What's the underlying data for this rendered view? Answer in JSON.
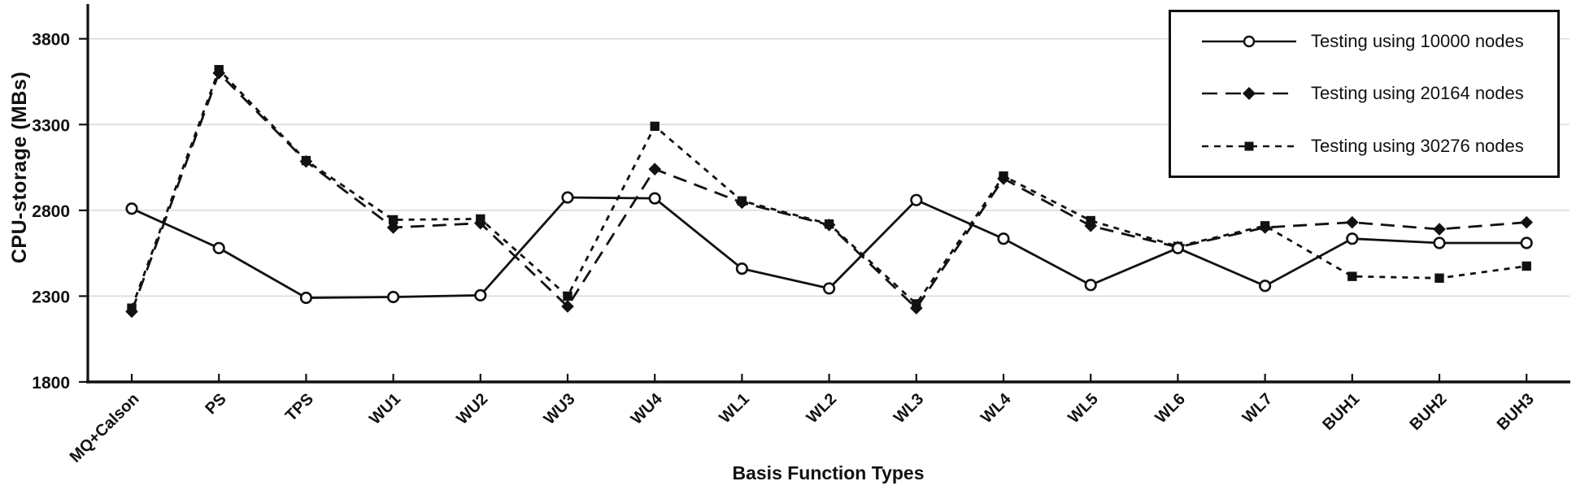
{
  "chart_data": {
    "type": "line",
    "title": "",
    "xlabel": "Basis Function Types",
    "ylabel": "CPU-storage (MBs)",
    "ylim": [
      1800,
      3800
    ],
    "yticks": [
      1800,
      2300,
      2800,
      3300,
      3800
    ],
    "grid": "horizontal",
    "legend_position": "top-right",
    "categories": [
      "MQ+Calson",
      "PS",
      "TPS",
      "WU1",
      "WU2",
      "WU3",
      "WU4",
      "WL1",
      "WL2",
      "WL3",
      "WL4",
      "WL5",
      "WL6",
      "WL7",
      "BUH1",
      "BUH2",
      "BUH3"
    ],
    "series": [
      {
        "name": "Testing using 10000 nodes",
        "marker": "open-circle",
        "line_style": "solid",
        "values": [
          2810,
          2580,
          2290,
          2295,
          2305,
          2875,
          2870,
          2460,
          2345,
          2860,
          2635,
          2365,
          2580,
          2360,
          2635,
          2610,
          2610
        ]
      },
      {
        "name": "Testing using 20164 nodes",
        "marker": "filled-diamond",
        "line_style": "long-dash",
        "values": [
          2210,
          3600,
          3085,
          2700,
          2725,
          2240,
          3040,
          2845,
          2715,
          2230,
          2985,
          2710,
          2585,
          2700,
          2730,
          2690,
          2730
        ]
      },
      {
        "name": "Testing using 30276 nodes",
        "marker": "filled-square",
        "line_style": "short-dash",
        "values": [
          2230,
          3620,
          3090,
          2745,
          2750,
          2300,
          3290,
          2855,
          2720,
          2255,
          3000,
          2740,
          2590,
          2710,
          2415,
          2405,
          2475
        ]
      }
    ],
    "colors": {
      "ink": "#111111",
      "grid": "#d8d8d8",
      "background": "#ffffff"
    }
  }
}
